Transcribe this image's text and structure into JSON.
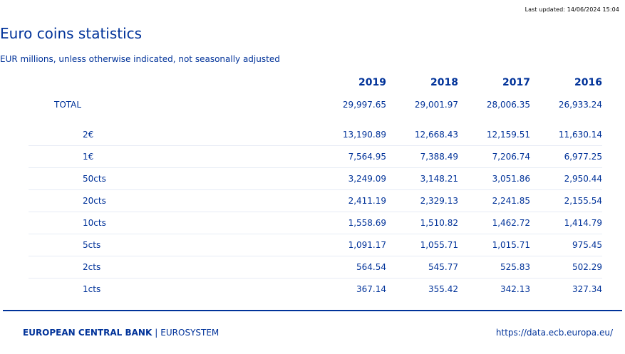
{
  "header": {
    "last_updated": "Last updated: 14/06/2024 15:04",
    "title": "Euro coins statistics",
    "subtitle": "EUR millions, unless otherwise indicated, not seasonally adjusted"
  },
  "table": {
    "years": [
      "2019",
      "2018",
      "2017",
      "2016"
    ],
    "total": {
      "label": "TOTAL",
      "values": [
        "29,997.65",
        "29,001.97",
        "28,006.35",
        "26,933.24"
      ]
    },
    "rows": [
      {
        "label": "2€",
        "values": [
          "13,190.89",
          "12,668.43",
          "12,159.51",
          "11,630.14"
        ]
      },
      {
        "label": "1€",
        "values": [
          "7,564.95",
          "7,388.49",
          "7,206.74",
          "6,977.25"
        ]
      },
      {
        "label": "50cts",
        "values": [
          "3,249.09",
          "3,148.21",
          "3,051.86",
          "2,950.44"
        ]
      },
      {
        "label": "20cts",
        "values": [
          "2,411.19",
          "2,329.13",
          "2,241.85",
          "2,155.54"
        ]
      },
      {
        "label": "10cts",
        "values": [
          "1,558.69",
          "1,510.82",
          "1,462.72",
          "1,414.79"
        ]
      },
      {
        "label": "5cts",
        "values": [
          "1,091.17",
          "1,055.71",
          "1,015.71",
          "975.45"
        ]
      },
      {
        "label": "2cts",
        "values": [
          "564.54",
          "545.77",
          "525.83",
          "502.29"
        ]
      },
      {
        "label": "1cts",
        "values": [
          "367.14",
          "355.42",
          "342.13",
          "327.34"
        ]
      }
    ]
  },
  "footer": {
    "bank": "EUROPEAN CENTRAL BANK",
    "separator": "|",
    "system": "EUROSYSTEM",
    "url": "https://data.ecb.europa.eu/"
  },
  "colors": {
    "text": "#003299",
    "row_divider": "#e6ebf5",
    "footer_line": "#003299"
  }
}
